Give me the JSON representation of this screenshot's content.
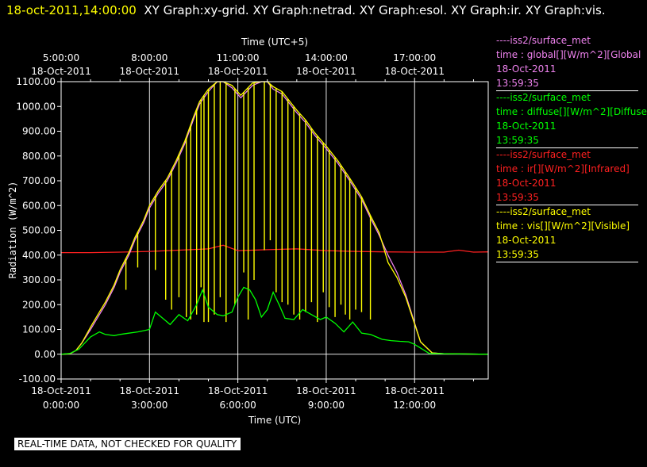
{
  "header": {
    "timestamp": "18-oct-2011,14:00:00",
    "graphs": "XY Graph:xy-grid.  XY Graph:netrad.  XY Graph:esol.  XY Graph:ir.  XY Graph:vis."
  },
  "legend": [
    {
      "color": "#ee82ee",
      "source": "----iss2/surface_met",
      "field": "time : global[][W/m^2][Global",
      "date": "18-Oct-2011",
      "time": "13:59:35"
    },
    {
      "color": "#00ff00",
      "source": "----iss2/surface_met",
      "field": "time : diffuse[][W/m^2][Diffuse",
      "date": "18-Oct-2011",
      "time": "13:59:35"
    },
    {
      "color": "#ff2020",
      "source": "----iss2/surface_met",
      "field": "time : ir[][W/m^2][Infrared]",
      "date": "18-Oct-2011",
      "time": "13:59:35"
    },
    {
      "color": "#ffff00",
      "source": "----iss2/surface_met",
      "field": "time : vis[][W/m^2][Visible]",
      "date": "18-Oct-2011",
      "time": "13:59:35"
    }
  ],
  "notice": "REAL-TIME DATA, NOT CHECKED FOR QUALITY",
  "chart_data": {
    "type": "line",
    "title": "",
    "xlabel": "Time (UTC)",
    "x2label": "Time (UTC+5)",
    "ylabel": "Radiation (W/m^2)",
    "xlim": [
      0,
      14.5
    ],
    "ylim": [
      -100,
      1100
    ],
    "grid": true,
    "x_ticks": [
      0,
      3,
      6,
      9,
      12
    ],
    "x_tick_labels": [
      [
        "18-Oct-2011",
        "0:00:00"
      ],
      [
        "18-Oct-2011",
        "3:00:00"
      ],
      [
        "18-Oct-2011",
        "6:00:00"
      ],
      [
        "18-Oct-2011",
        "9:00:00"
      ],
      [
        "18-Oct-2011",
        "12:00:00"
      ]
    ],
    "x2_tick_labels": [
      [
        "5:00:00",
        "18-Oct-2011"
      ],
      [
        "8:00:00",
        "18-Oct-2011"
      ],
      [
        "11:00:00",
        "18-Oct-2011"
      ],
      [
        "14:00:00",
        "18-Oct-2011"
      ],
      [
        "17:00:00",
        "18-Oct-2011"
      ]
    ],
    "y_ticks": [
      -100,
      0,
      100,
      200,
      300,
      400,
      500,
      600,
      700,
      800,
      900,
      1000,
      1100
    ],
    "y_tick_labels": [
      "-100.00",
      "0.00",
      "100.00",
      "200.00",
      "300.00",
      "400.00",
      "500.00",
      "600.00",
      "700.00",
      "800.00",
      "900.00",
      "1000.00",
      "1100.00"
    ],
    "series": [
      {
        "name": "global",
        "color": "#ee82ee",
        "x": [
          0,
          0.3,
          0.5,
          0.7,
          1,
          1.3,
          1.5,
          1.8,
          2,
          2.3,
          2.5,
          2.8,
          3,
          3.3,
          3.6,
          3.9,
          4.2,
          4.5,
          4.7,
          5.0,
          5.3,
          5.5,
          5.8,
          6.1,
          6.5,
          6.8,
          7.0,
          7.2,
          7.5,
          7.8,
          8.0,
          8.3,
          8.6,
          9.0,
          9.4,
          9.8,
          10.2,
          10.5,
          10.8,
          11.1,
          11.4,
          11.7,
          11.95,
          12.2,
          12.6,
          13,
          14.5
        ],
        "y": [
          0,
          2,
          15,
          45,
          100,
          160,
          200,
          270,
          330,
          400,
          460,
          530,
          590,
          650,
          700,
          770,
          850,
          950,
          1010,
          1060,
          1100,
          1100,
          1075,
          1035,
          1085,
          1100,
          1100,
          1070,
          1050,
          1005,
          975,
          935,
          885,
          830,
          770,
          700,
          625,
          550,
          480,
          400,
          330,
          240,
          145,
          50,
          5,
          2,
          0
        ]
      },
      {
        "name": "diffuse",
        "color": "#00ff00",
        "x": [
          0,
          0.3,
          0.6,
          0.8,
          1.0,
          1.3,
          1.5,
          1.8,
          2.0,
          2.3,
          2.6,
          2.8,
          3.0,
          3.2,
          3.5,
          3.7,
          4.0,
          4.3,
          4.6,
          4.8,
          5.0,
          5.3,
          5.5,
          5.8,
          6.0,
          6.2,
          6.4,
          6.6,
          6.8,
          7.0,
          7.2,
          7.4,
          7.6,
          7.9,
          8.2,
          8.5,
          8.8,
          9.0,
          9.3,
          9.6,
          9.9,
          10.2,
          10.5,
          10.7,
          10.9,
          11.2,
          11.5,
          11.8,
          12.0,
          12.2,
          12.5,
          13,
          14.5
        ],
        "y": [
          0,
          3,
          20,
          45,
          70,
          90,
          80,
          75,
          80,
          85,
          90,
          95,
          100,
          170,
          140,
          120,
          160,
          135,
          200,
          260,
          190,
          160,
          155,
          170,
          230,
          270,
          260,
          220,
          150,
          180,
          250,
          200,
          145,
          140,
          180,
          160,
          140,
          150,
          125,
          90,
          130,
          85,
          80,
          70,
          60,
          55,
          52,
          50,
          40,
          25,
          3,
          2,
          0
        ]
      },
      {
        "name": "ir",
        "color": "#ff2020",
        "x": [
          0,
          1,
          2,
          3,
          4,
          5,
          5.5,
          6,
          7,
          8,
          9,
          10,
          11,
          12,
          13,
          13.5,
          14,
          14.5
        ],
        "y": [
          410,
          410,
          412,
          415,
          420,
          425,
          440,
          418,
          422,
          425,
          418,
          415,
          413,
          412,
          412,
          420,
          412,
          413
        ]
      },
      {
        "name": "vis",
        "color": "#ffff00",
        "x": [
          0,
          0.3,
          0.5,
          0.7,
          1,
          1.3,
          1.5,
          1.8,
          2,
          2.3,
          2.5,
          2.8,
          3,
          3.3,
          3.6,
          3.9,
          4.2,
          4.5,
          4.7,
          5.0,
          5.3,
          5.5,
          5.8,
          6.1,
          6.5,
          6.8,
          7.0,
          7.2,
          7.5,
          7.8,
          8.0,
          8.3,
          8.6,
          9.0,
          9.4,
          9.8,
          10.2,
          10.5,
          10.8,
          11.1,
          11.4,
          11.7,
          11.95,
          12.2,
          12.6,
          13,
          14.5
        ],
        "y": [
          0,
          2,
          15,
          45,
          110,
          170,
          210,
          280,
          340,
          410,
          470,
          540,
          600,
          660,
          710,
          780,
          860,
          960,
          1020,
          1070,
          1100,
          1100,
          1085,
          1045,
          1095,
          1100,
          1100,
          1080,
          1060,
          1015,
          985,
          945,
          895,
          840,
          780,
          710,
          635,
          560,
          490,
          370,
          310,
          230,
          140,
          50,
          5,
          2,
          0
        ]
      }
    ],
    "vis_dropouts": {
      "x": [
        2.2,
        2.6,
        3.2,
        3.55,
        3.75,
        4.0,
        4.25,
        4.4,
        4.6,
        4.75,
        4.85,
        5.0,
        5.2,
        5.4,
        5.6,
        5.9,
        6.2,
        6.35,
        6.55,
        6.9,
        7.1,
        7.3,
        7.5,
        7.7,
        7.9,
        8.1,
        8.3,
        8.5,
        8.7,
        8.9,
        9.1,
        9.3,
        9.5,
        9.65,
        9.8,
        10.0,
        10.2,
        10.5
      ],
      "y": [
        260,
        350,
        340,
        220,
        180,
        230,
        150,
        140,
        160,
        270,
        130,
        130,
        160,
        230,
        130,
        200,
        330,
        140,
        300,
        420,
        460,
        250,
        210,
        200,
        160,
        140,
        170,
        210,
        130,
        250,
        190,
        150,
        200,
        160,
        140,
        180,
        170,
        140
      ]
    }
  }
}
